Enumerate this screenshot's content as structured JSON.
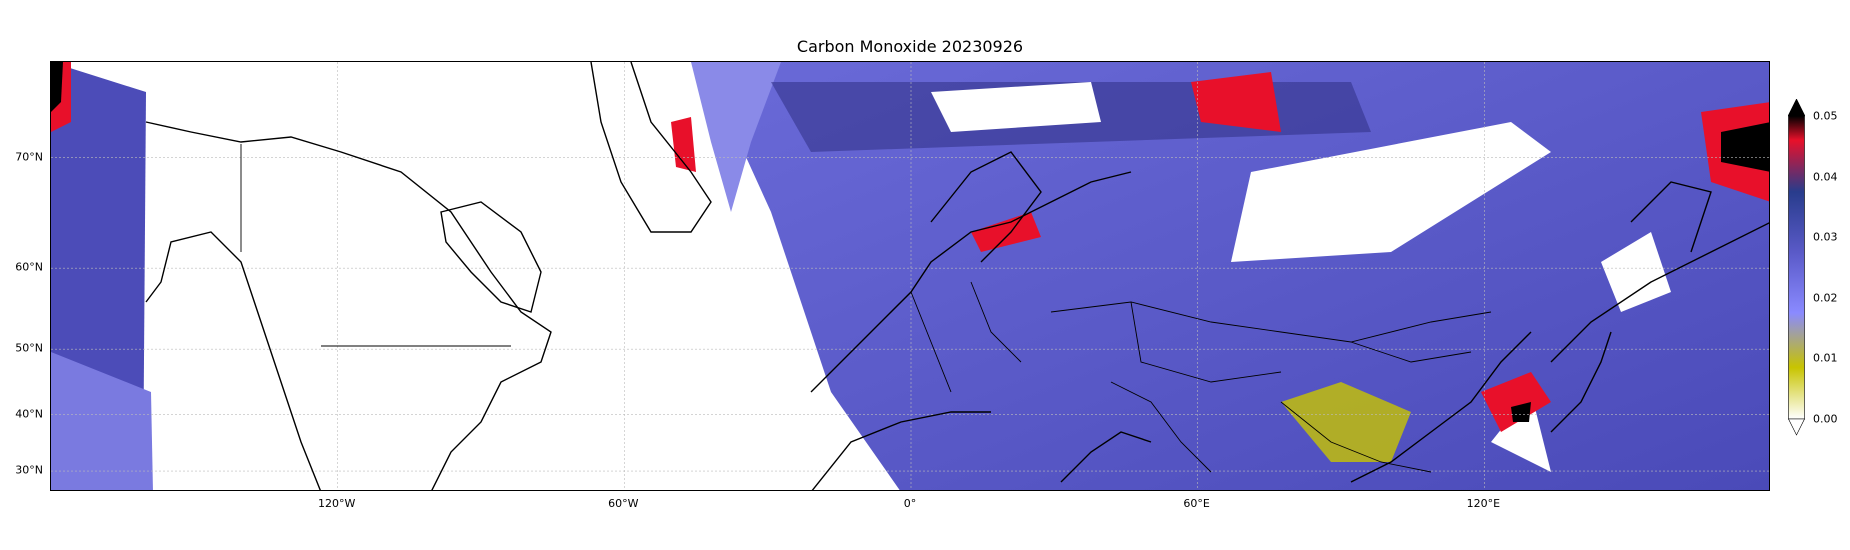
{
  "title": "Carbon Monoxide 20230926",
  "lat_ticks": [
    {
      "label": "70°N",
      "lat": 70
    },
    {
      "label": "60°N",
      "lat": 60
    },
    {
      "label": "50°N",
      "lat": 50
    },
    {
      "label": "40°N",
      "lat": 40
    },
    {
      "label": "30°N",
      "lat": 30
    }
  ],
  "lon_ticks": [
    {
      "label": "120°W",
      "lon": -120
    },
    {
      "label": "60°W",
      "lon": -60
    },
    {
      "label": "0°",
      "lon": 0
    },
    {
      "label": "60°E",
      "lon": 60
    },
    {
      "label": "120°E",
      "lon": 120
    }
  ],
  "colorbar": {
    "ticks": [
      "0.00",
      "0.01",
      "0.02",
      "0.03",
      "0.04",
      "0.05"
    ],
    "min": 0.0,
    "max": 0.05,
    "extend": "both",
    "colors": [
      "#ffffff",
      "#c8c400",
      "#8a8aff",
      "#5a5ac8",
      "#283c8c",
      "#e8102a",
      "#000000"
    ]
  },
  "extent": {
    "lon_min": -180,
    "lon_max": 180,
    "lat_min": 26,
    "lat_max": 76
  },
  "gridlines": true
}
